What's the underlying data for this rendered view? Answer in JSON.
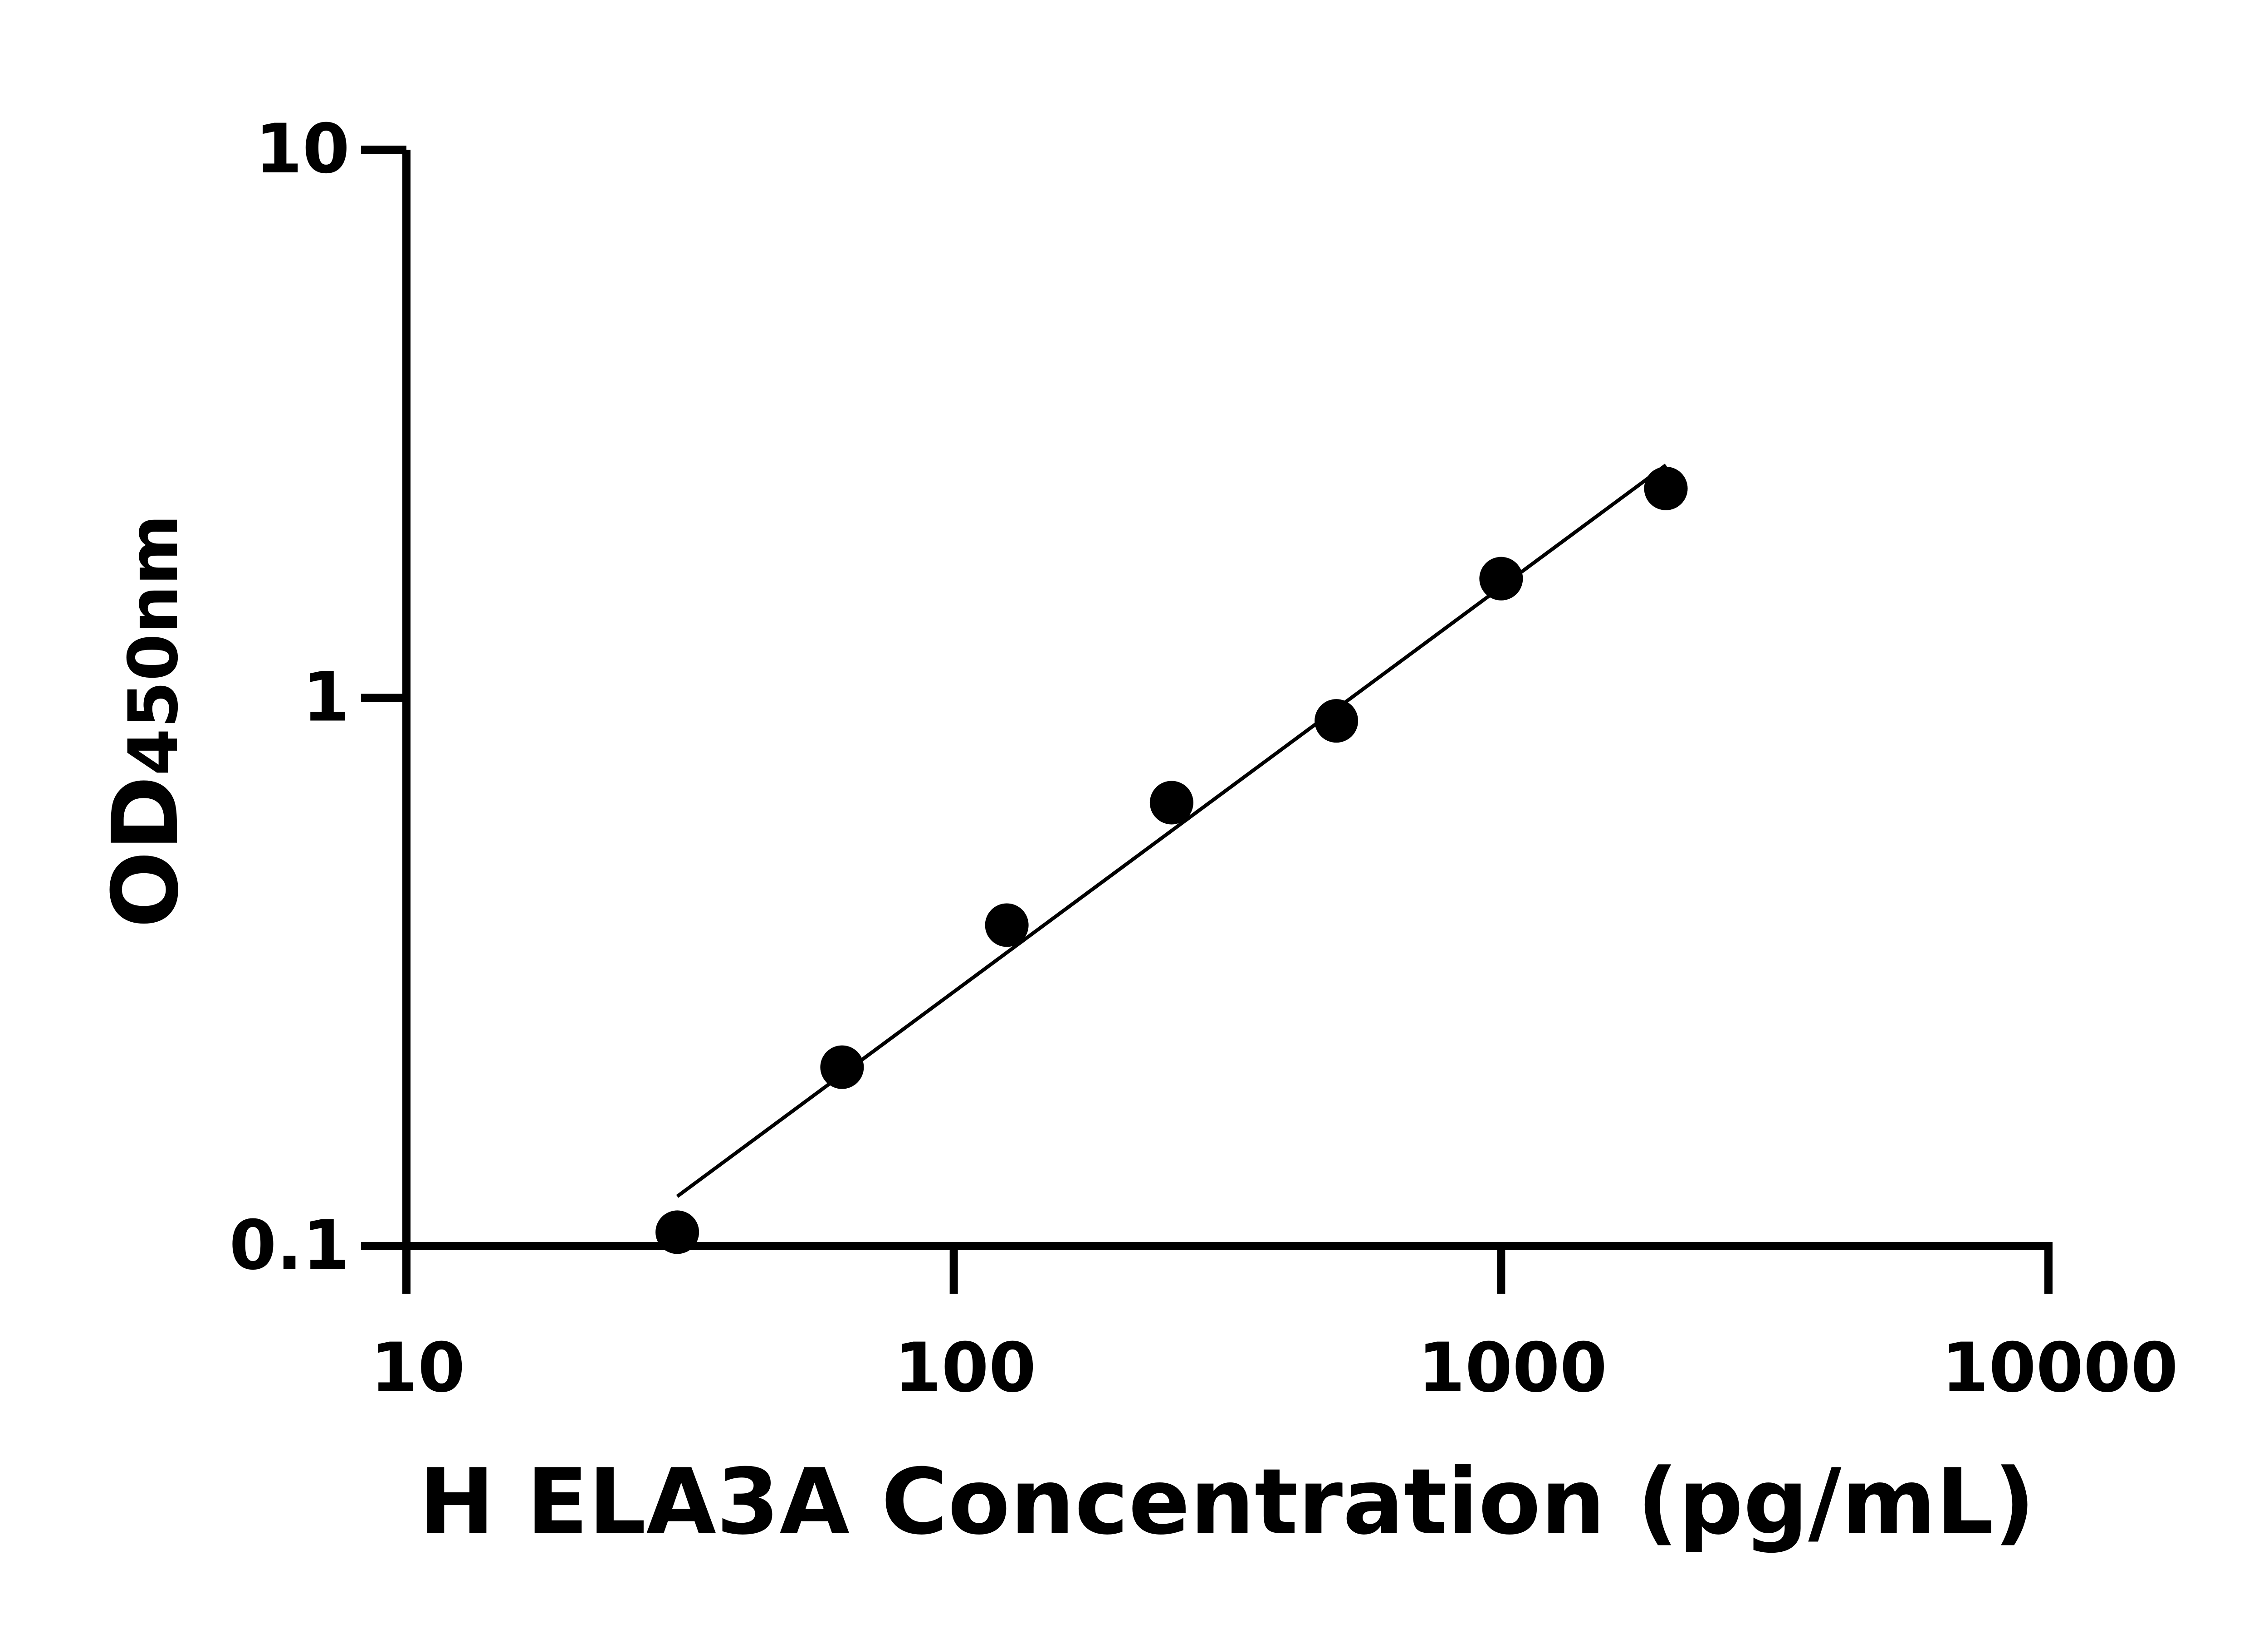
{
  "chart_data": {
    "type": "scatter",
    "title": "",
    "xlabel": "H ELA3A Concentration (pg/mL)",
    "ylabel_main": "OD",
    "ylabel_sub": "450nm",
    "x_scale": "log",
    "y_scale": "log",
    "xlim": [
      10,
      10000
    ],
    "ylim": [
      0.1,
      10
    ],
    "x_ticks": [
      10,
      100,
      1000,
      10000
    ],
    "x_tick_labels": [
      "10",
      "100",
      "1000",
      "10000"
    ],
    "y_ticks": [
      0.1,
      1,
      10
    ],
    "y_tick_labels": [
      "0.1",
      "1",
      "10"
    ],
    "grid": false,
    "legend": "none",
    "color": "#000000",
    "points": {
      "x": [
        31.25,
        62.5,
        125,
        250,
        500,
        1000,
        2000
      ],
      "y": [
        0.106,
        0.212,
        0.385,
        0.644,
        0.908,
        1.65,
        2.41
      ]
    },
    "fit_line": true
  }
}
